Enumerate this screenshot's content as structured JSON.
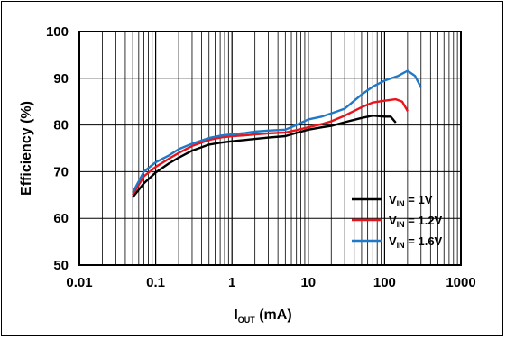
{
  "chart_data": {
    "type": "line",
    "title": "",
    "xlabel": {
      "main": "I",
      "sub": "OUT",
      "unit": " (mA)"
    },
    "ylabel": "Efficiency (%)",
    "xscale": "log",
    "xlim": [
      0.01,
      1000
    ],
    "ylim": [
      50,
      100
    ],
    "x_ticks": [
      {
        "value": 0.01,
        "label": "0.01"
      },
      {
        "value": 0.1,
        "label": "0.1"
      },
      {
        "value": 1,
        "label": "1"
      },
      {
        "value": 10,
        "label": "10"
      },
      {
        "value": 100,
        "label": "100"
      },
      {
        "value": 1000,
        "label": "1000"
      }
    ],
    "y_ticks": [
      {
        "value": 50,
        "label": "50"
      },
      {
        "value": 60,
        "label": "60"
      },
      {
        "value": 70,
        "label": "70"
      },
      {
        "value": 80,
        "label": "80"
      },
      {
        "value": 90,
        "label": "90"
      },
      {
        "value": 100,
        "label": "100"
      }
    ],
    "grid": true,
    "legend_position": "bottom-right",
    "series": [
      {
        "legend": {
          "main": "V",
          "sub": "IN",
          "rest": " = 1V"
        },
        "color": "#000000",
        "points": [
          [
            0.05,
            64.5
          ],
          [
            0.07,
            67.5
          ],
          [
            0.1,
            69.8
          ],
          [
            0.15,
            71.8
          ],
          [
            0.2,
            73.0
          ],
          [
            0.3,
            74.5
          ],
          [
            0.5,
            75.8
          ],
          [
            0.7,
            76.2
          ],
          [
            1,
            76.5
          ],
          [
            1.5,
            76.8
          ],
          [
            2,
            77.0
          ],
          [
            3,
            77.3
          ],
          [
            5,
            77.6
          ],
          [
            7,
            78.3
          ],
          [
            10,
            79.0
          ],
          [
            15,
            79.5
          ],
          [
            20,
            79.8
          ],
          [
            30,
            80.6
          ],
          [
            50,
            81.5
          ],
          [
            70,
            82.0
          ],
          [
            100,
            81.8
          ],
          [
            120,
            81.8
          ],
          [
            140,
            80.5
          ]
        ]
      },
      {
        "legend": {
          "main": "V",
          "sub": "IN",
          "rest": " = 1.2V"
        },
        "color": "#e8141c",
        "points": [
          [
            0.05,
            65.0
          ],
          [
            0.07,
            69.0
          ],
          [
            0.1,
            71.0
          ],
          [
            0.15,
            72.8
          ],
          [
            0.2,
            74.0
          ],
          [
            0.3,
            75.5
          ],
          [
            0.5,
            76.8
          ],
          [
            0.7,
            77.3
          ],
          [
            1,
            77.6
          ],
          [
            1.5,
            77.8
          ],
          [
            2,
            78.0
          ],
          [
            3,
            78.2
          ],
          [
            5,
            78.4
          ],
          [
            7,
            78.9
          ],
          [
            10,
            79.5
          ],
          [
            15,
            80.2
          ],
          [
            20,
            80.8
          ],
          [
            30,
            82.0
          ],
          [
            50,
            83.8
          ],
          [
            70,
            84.8
          ],
          [
            100,
            85.2
          ],
          [
            140,
            85.5
          ],
          [
            170,
            85.0
          ],
          [
            200,
            83.0
          ]
        ]
      },
      {
        "legend": {
          "main": "V",
          "sub": "IN",
          "rest": " = 1.6V"
        },
        "color": "#1f78c8",
        "points": [
          [
            0.05,
            65.5
          ],
          [
            0.07,
            70.0
          ],
          [
            0.1,
            72.0
          ],
          [
            0.15,
            73.5
          ],
          [
            0.2,
            74.8
          ],
          [
            0.3,
            76.0
          ],
          [
            0.5,
            77.2
          ],
          [
            0.7,
            77.7
          ],
          [
            1,
            78.0
          ],
          [
            1.5,
            78.3
          ],
          [
            2,
            78.6
          ],
          [
            3,
            78.8
          ],
          [
            5,
            79.0
          ],
          [
            7,
            80.0
          ],
          [
            10,
            81.2
          ],
          [
            15,
            81.8
          ],
          [
            20,
            82.5
          ],
          [
            30,
            83.5
          ],
          [
            50,
            86.5
          ],
          [
            70,
            88.2
          ],
          [
            100,
            89.5
          ],
          [
            150,
            90.5
          ],
          [
            200,
            91.6
          ],
          [
            250,
            90.5
          ],
          [
            300,
            88.0
          ]
        ]
      }
    ]
  }
}
